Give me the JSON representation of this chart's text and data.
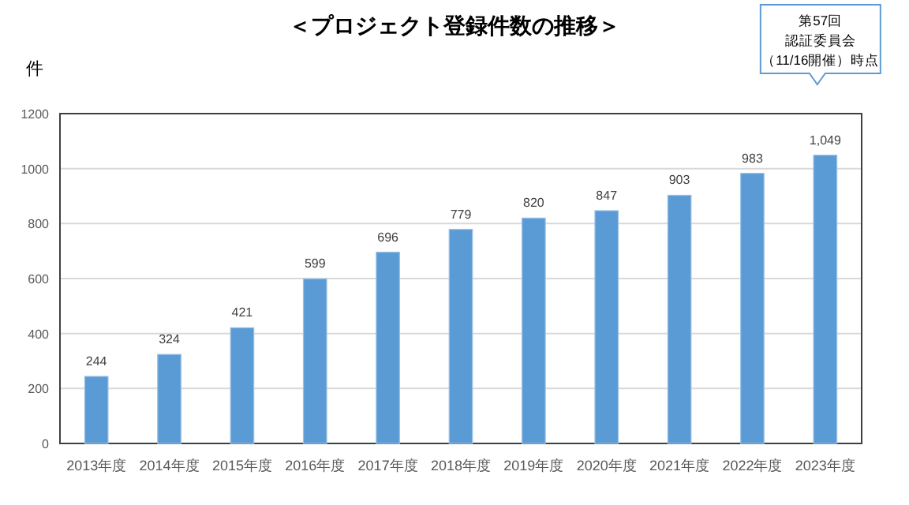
{
  "chart_data": {
    "type": "bar",
    "title": "＜プロジェクト登録件数の推移＞",
    "ylabel": "件",
    "categories": [
      "2013年度",
      "2014年度",
      "2015年度",
      "2016年度",
      "2017年度",
      "2018年度",
      "2019年度",
      "2020年度",
      "2021年度",
      "2022年度",
      "2023年度"
    ],
    "values": [
      244,
      324,
      421,
      599,
      696,
      779,
      820,
      847,
      903,
      983,
      1049
    ],
    "value_labels": [
      "244",
      "324",
      "421",
      "599",
      "696",
      "779",
      "820",
      "847",
      "903",
      "983",
      "1,049"
    ],
    "color": "#5b9bd5",
    "ylim": [
      0,
      1200
    ],
    "yticks": [
      0,
      200,
      400,
      600,
      800,
      1000,
      1200
    ],
    "grid": "y",
    "annotations": [
      "第57回",
      "認証委員会",
      "（11/16開催）時点"
    ]
  }
}
